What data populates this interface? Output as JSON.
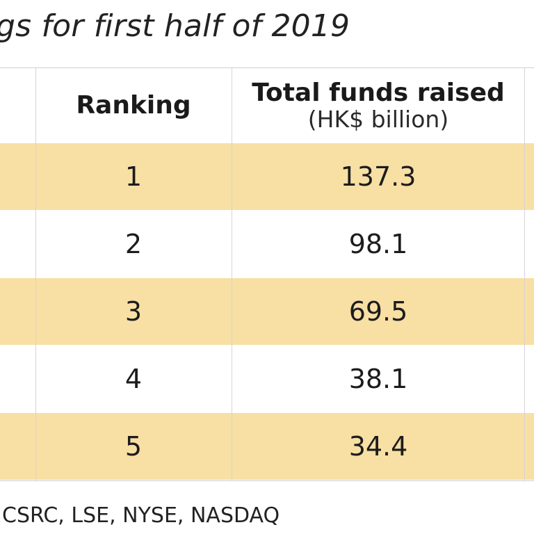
{
  "title": "gs for first half of 2019",
  "headers": {
    "ranking": "Ranking",
    "funds_main": "Total funds raised",
    "funds_sub": "(HK$ billion)"
  },
  "chart_data": {
    "type": "table",
    "columns": [
      "Ranking",
      "Total funds raised (HK$ billion)"
    ],
    "rows": [
      {
        "rank": "1",
        "funds": "137.3"
      },
      {
        "rank": "2",
        "funds": "98.1"
      },
      {
        "rank": "3",
        "funds": "69.5"
      },
      {
        "rank": "4",
        "funds": "38.1"
      },
      {
        "rank": "5",
        "funds": "34.4"
      }
    ]
  },
  "colors": {
    "shaded_row": "#f8dfa4",
    "plain_row": "#ffffff",
    "grid_line": "#d4d4d4"
  },
  "source": "CSRC, LSE, NYSE, NASDAQ"
}
